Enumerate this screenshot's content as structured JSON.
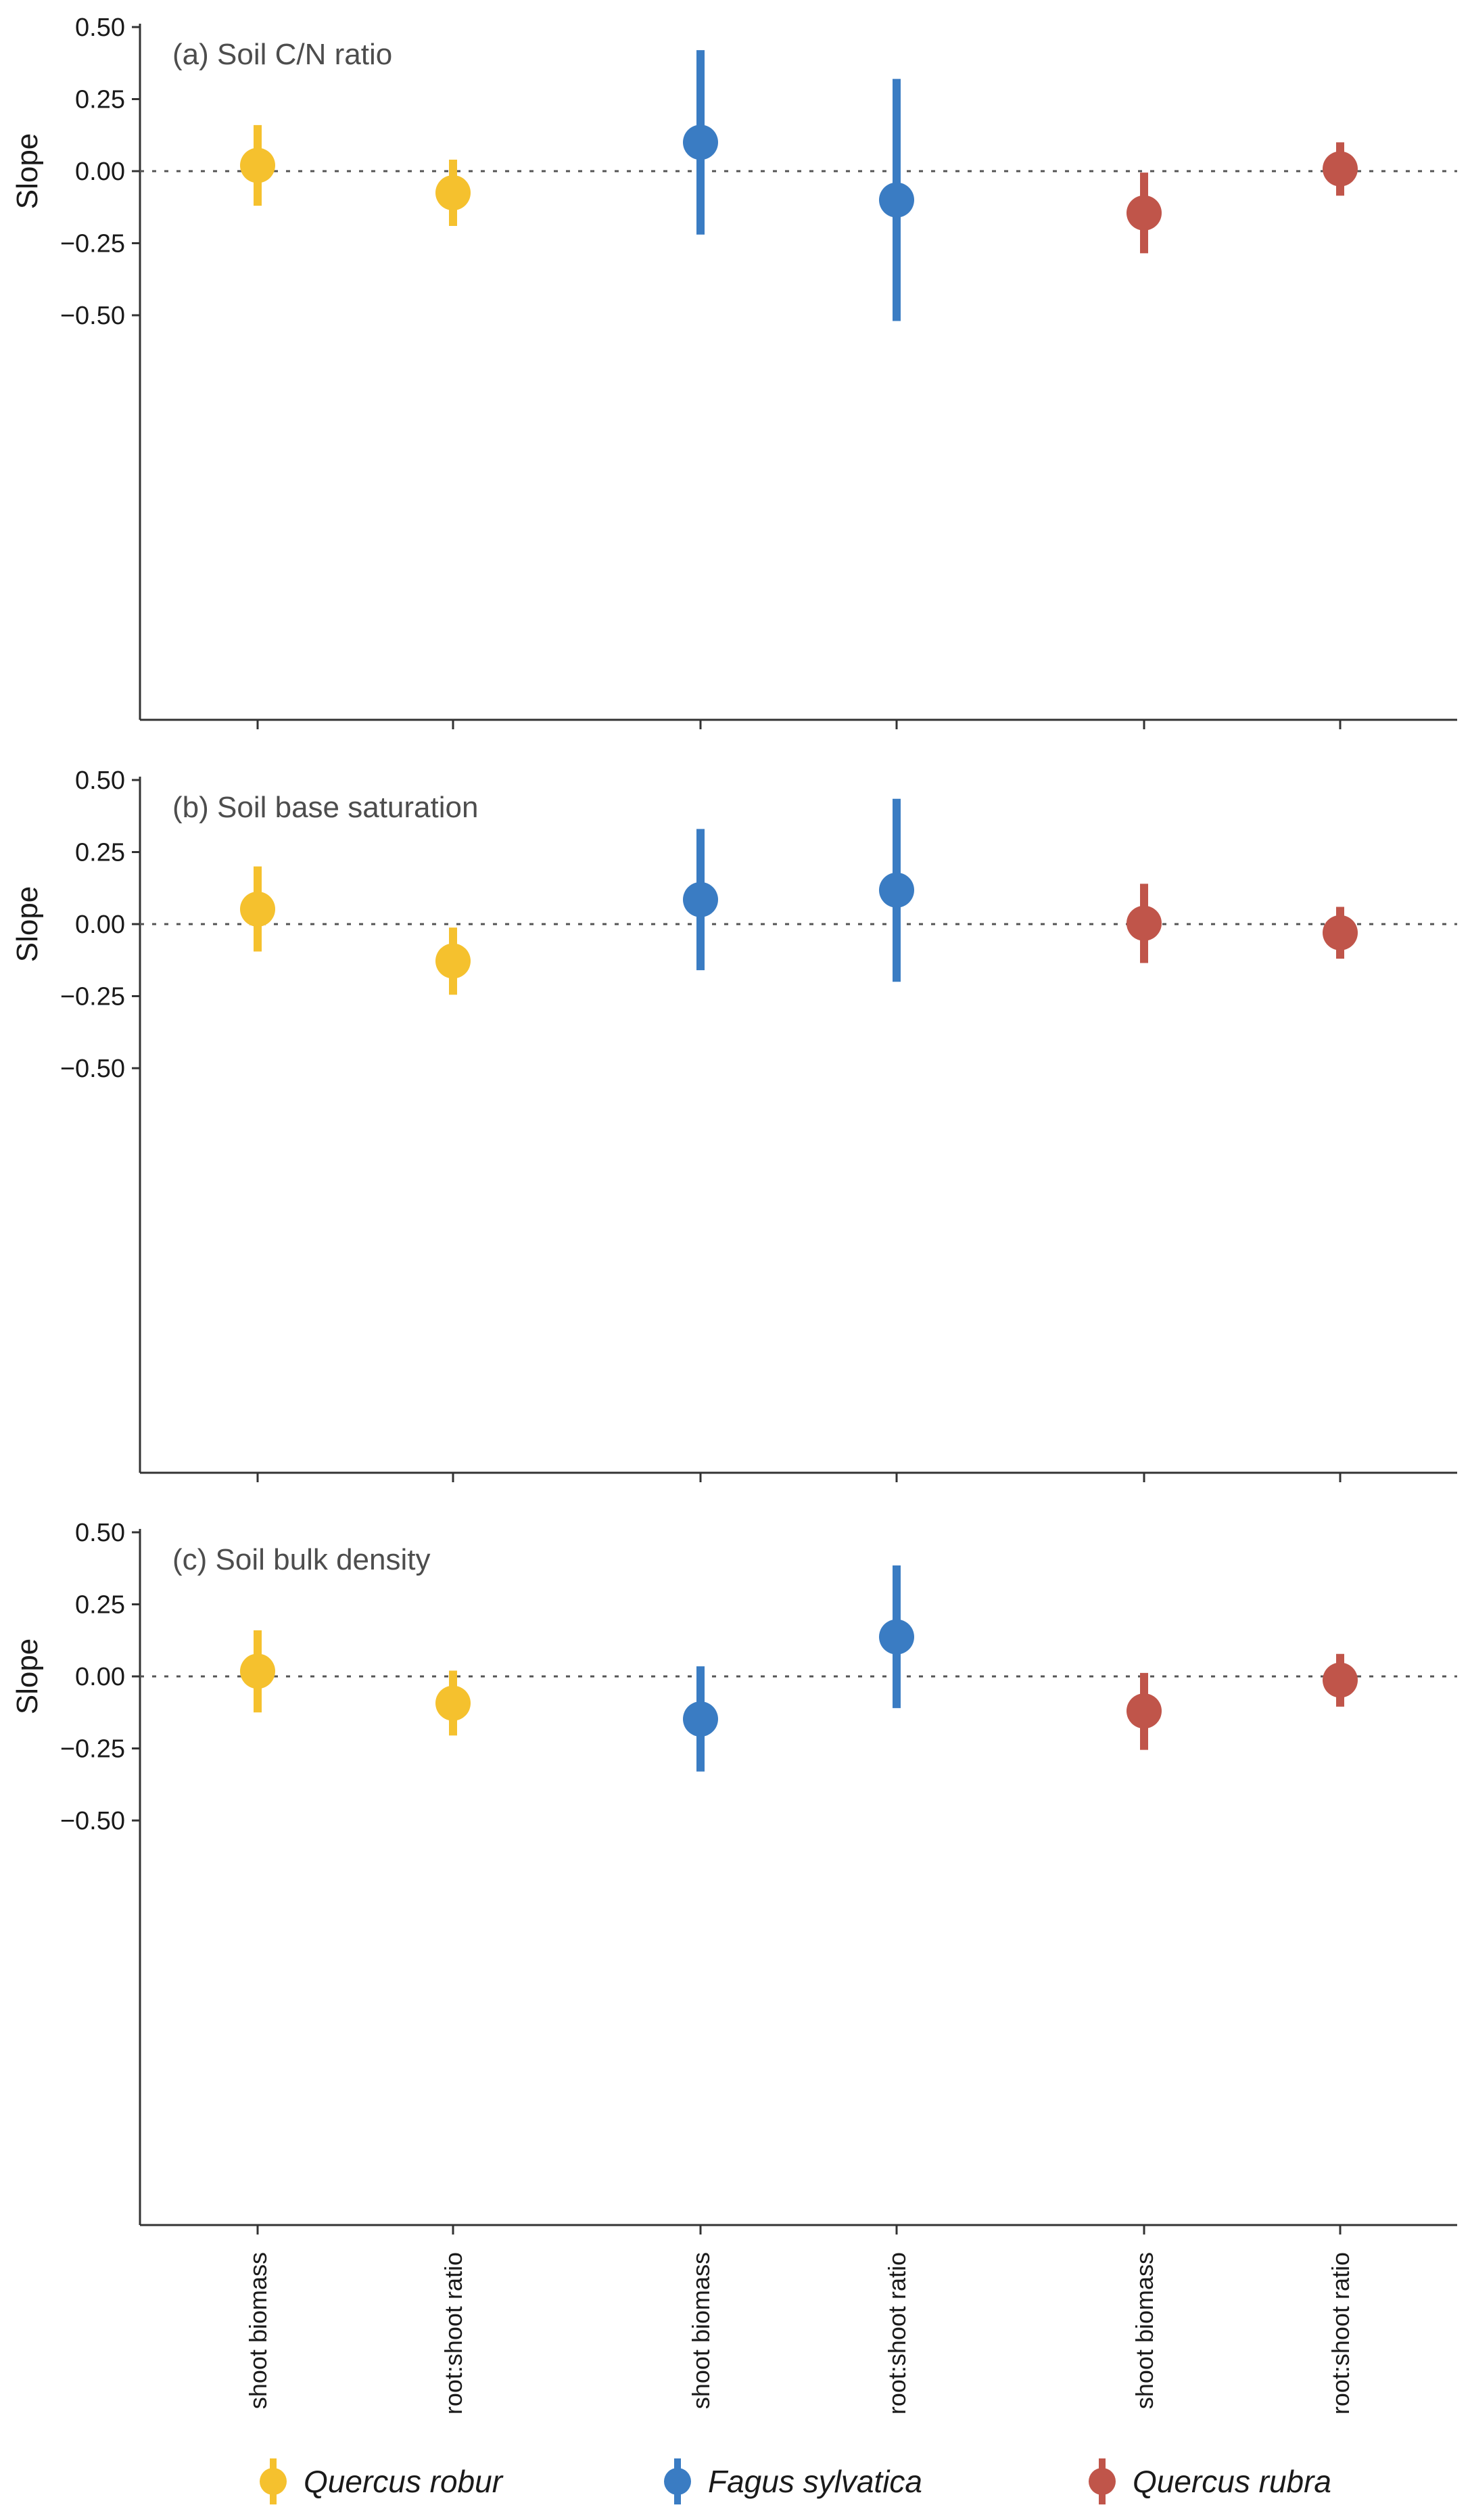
{
  "chart_data": [
    {
      "type": "scatter",
      "title": "(a) Soil C/N ratio",
      "ylabel": "Slope",
      "ylim": [
        -0.65,
        0.5
      ],
      "yticks": [
        0.5,
        0.25,
        0.0,
        -0.25,
        -0.5
      ],
      "ytick_labels": [
        "0.50",
        "0.25",
        "0.00",
        "−0.25",
        "−0.50"
      ],
      "reference_line": 0,
      "categories": [
        "shoot biomass",
        "root:shoot ratio",
        "shoot biomass",
        "root:shoot ratio",
        "shoot biomass",
        "root:shoot ratio"
      ],
      "series": [
        {
          "name": "Quercus robur",
          "color": "#f5c12e",
          "points": [
            {
              "cat": 0,
              "y": 0.02,
              "lo": -0.12,
              "hi": 0.16
            },
            {
              "cat": 1,
              "y": -0.075,
              "lo": -0.19,
              "hi": 0.04
            }
          ]
        },
        {
          "name": "Fagus sylvatica",
          "color": "#3a7cc3",
          "points": [
            {
              "cat": 2,
              "y": 0.1,
              "lo": -0.22,
              "hi": 0.42
            },
            {
              "cat": 3,
              "y": -0.1,
              "lo": -0.52,
              "hi": 0.32
            }
          ]
        },
        {
          "name": "Quercus rubra",
          "color": "#c0554a",
          "points": [
            {
              "cat": 4,
              "y": -0.145,
              "lo": -0.285,
              "hi": -0.005
            },
            {
              "cat": 5,
              "y": 0.008,
              "lo": -0.085,
              "hi": 0.1
            }
          ]
        }
      ]
    },
    {
      "type": "scatter",
      "title": "(b) Soil base saturation",
      "ylabel": "Slope",
      "ylim": [
        -0.65,
        0.5
      ],
      "yticks": [
        0.5,
        0.25,
        0.0,
        -0.25,
        -0.5
      ],
      "ytick_labels": [
        "0.50",
        "0.25",
        "0.00",
        "−0.25",
        "−0.50"
      ],
      "reference_line": 0,
      "categories": [
        "shoot biomass",
        "root:shoot ratio",
        "shoot biomass",
        "root:shoot ratio",
        "shoot biomass",
        "root:shoot ratio"
      ],
      "series": [
        {
          "name": "Quercus robur",
          "color": "#f5c12e",
          "points": [
            {
              "cat": 0,
              "y": 0.052,
              "lo": -0.095,
              "hi": 0.2
            },
            {
              "cat": 1,
              "y": -0.128,
              "lo": -0.245,
              "hi": -0.012
            }
          ]
        },
        {
          "name": "Fagus sylvatica",
          "color": "#3a7cc3",
          "points": [
            {
              "cat": 2,
              "y": 0.085,
              "lo": -0.16,
              "hi": 0.33
            },
            {
              "cat": 3,
              "y": 0.118,
              "lo": -0.2,
              "hi": 0.435
            }
          ]
        },
        {
          "name": "Quercus rubra",
          "color": "#c0554a",
          "points": [
            {
              "cat": 4,
              "y": 0.003,
              "lo": -0.135,
              "hi": 0.14
            },
            {
              "cat": 5,
              "y": -0.03,
              "lo": -0.12,
              "hi": 0.06
            }
          ]
        }
      ]
    },
    {
      "type": "scatter",
      "title": "(c) Soil bulk density",
      "ylabel": "Slope",
      "ylim": [
        -0.65,
        0.5
      ],
      "yticks": [
        0.5,
        0.25,
        0.0,
        -0.25,
        -0.5
      ],
      "ytick_labels": [
        "0.50",
        "0.25",
        "0.00",
        "−0.25",
        "−0.50"
      ],
      "reference_line": 0,
      "categories": [
        "shoot biomass",
        "root:shoot ratio",
        "shoot biomass",
        "root:shoot ratio",
        "shoot biomass",
        "root:shoot ratio"
      ],
      "series": [
        {
          "name": "Quercus robur",
          "color": "#f5c12e",
          "points": [
            {
              "cat": 0,
              "y": 0.018,
              "lo": -0.125,
              "hi": 0.16
            },
            {
              "cat": 1,
              "y": -0.093,
              "lo": -0.205,
              "hi": 0.02
            }
          ]
        },
        {
          "name": "Fagus sylvatica",
          "color": "#3a7cc3",
          "points": [
            {
              "cat": 2,
              "y": -0.148,
              "lo": -0.33,
              "hi": 0.035
            },
            {
              "cat": 3,
              "y": 0.137,
              "lo": -0.11,
              "hi": 0.385
            }
          ]
        },
        {
          "name": "Quercus rubra",
          "color": "#c0554a",
          "points": [
            {
              "cat": 4,
              "y": -0.12,
              "lo": -0.255,
              "hi": 0.012
            },
            {
              "cat": 5,
              "y": -0.013,
              "lo": -0.105,
              "hi": 0.078
            }
          ]
        }
      ]
    }
  ],
  "legend": [
    {
      "name": "Quercus robur",
      "color": "#f5c12e"
    },
    {
      "name": "Fagus sylvatica",
      "color": "#3a7cc3"
    },
    {
      "name": "Quercus rubra",
      "color": "#c0554a"
    }
  ]
}
